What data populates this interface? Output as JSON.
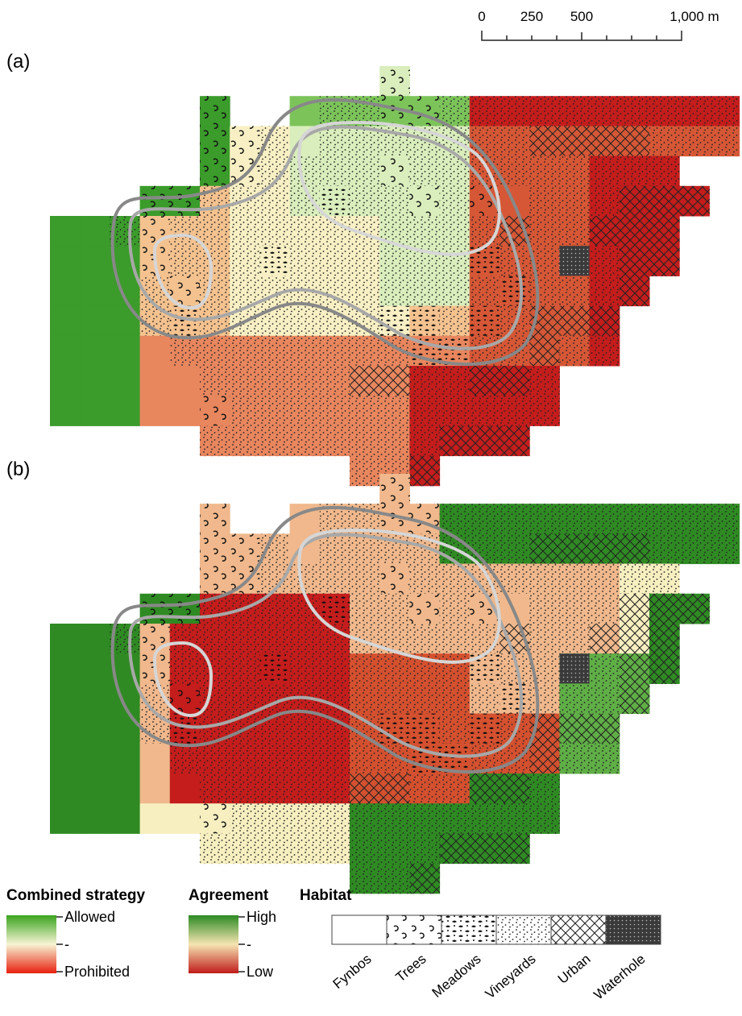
{
  "panels": [
    {
      "label": "(a)",
      "palette": "strategy"
    },
    {
      "label": "(b)",
      "palette": "agreement"
    }
  ],
  "scale_bar": {
    "ticks": [
      "0",
      "250",
      "500",
      "1,000 m"
    ]
  },
  "legend": {
    "combined_strategy": {
      "title": "Combined strategy",
      "high": "Allowed",
      "mid": "-",
      "low": "Prohibited"
    },
    "agreement": {
      "title": "Agreement",
      "high": "High",
      "mid": "-",
      "low": "Low"
    },
    "habitat": {
      "title": "Habitat",
      "items": [
        "Fynbos",
        "Trees",
        "Meadows",
        "Vineyards",
        "Urban",
        "Waterhole"
      ]
    }
  },
  "colors": {
    "strategy_ramp": [
      "#3b9b2b",
      "#7cc45a",
      "#d9eebc",
      "#f8f0c4",
      "#f4c28f",
      "#e8865e",
      "#d65736",
      "#c41d1c"
    ],
    "agreement_ramp": [
      "#2f8a23",
      "#5fae46",
      "#bfe0a0",
      "#f7efc0",
      "#f0b88c",
      "#e3825c",
      "#d4502f",
      "#c41d1c"
    ],
    "contour": "#888888",
    "contour_inner": "#d6d6d6",
    "waterhole": "#3a3a3a"
  }
}
